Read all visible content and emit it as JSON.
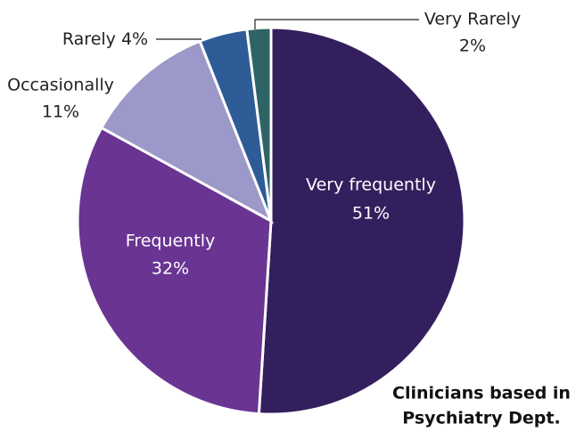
{
  "chart_data": {
    "type": "pie",
    "categories": [
      "Very frequently",
      "Frequently",
      "Occasionally",
      "Rarely",
      "Very Rarely"
    ],
    "values": [
      51,
      32,
      11,
      4,
      2
    ],
    "value_labels": [
      "51%",
      "32%",
      "11%",
      "4%",
      "2%"
    ],
    "colors": [
      "#341f5e",
      "#6a3493",
      "#9c98c9",
      "#2e5c97",
      "#2e6466"
    ],
    "annotation": [
      "Clinicians based in",
      "Psychiatry Dept."
    ]
  }
}
